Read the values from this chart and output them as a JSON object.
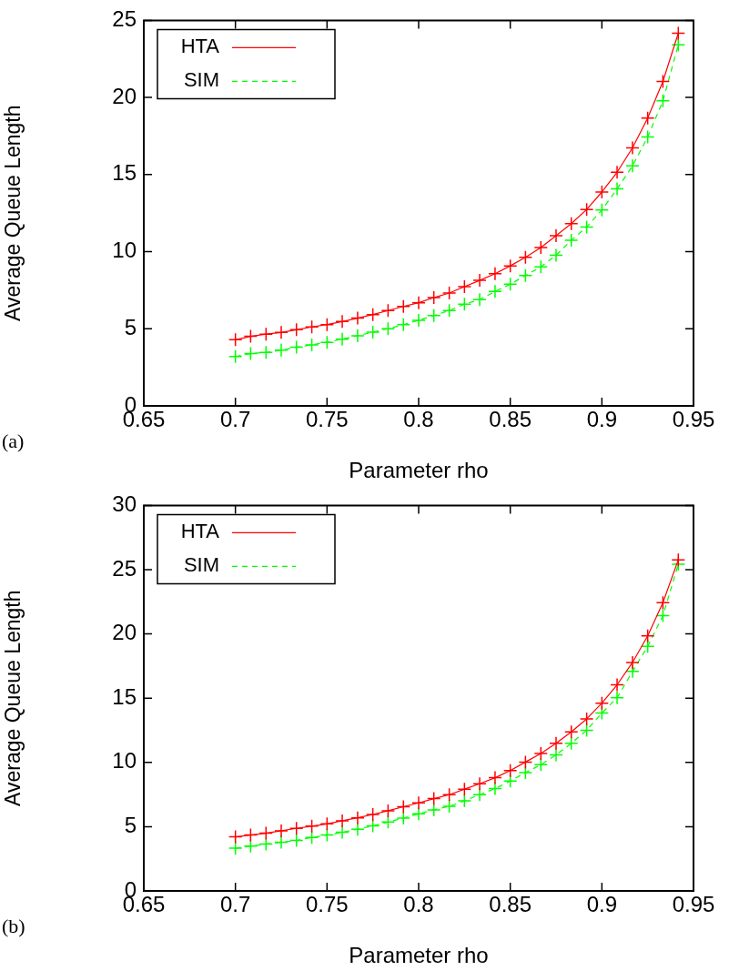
{
  "chart_data": [
    {
      "type": "line",
      "xlabel": "Parameter rho",
      "ylabel": "Average Queue Length",
      "annotations": [
        "(a)"
      ],
      "xlim": [
        0.65,
        0.95
      ],
      "xticks": [
        0.65,
        0.7,
        0.75,
        0.8,
        0.85,
        0.9,
        0.95
      ],
      "ylim": [
        0,
        25
      ],
      "yticks": [
        0,
        5,
        10,
        15,
        20,
        25
      ],
      "grid": false,
      "legend": "top left",
      "marker": "cross",
      "x": [
        0.7,
        0.7083,
        0.7167,
        0.725,
        0.7333,
        0.7417,
        0.75,
        0.7583,
        0.7667,
        0.775,
        0.7833,
        0.7917,
        0.8,
        0.8083,
        0.8167,
        0.825,
        0.8333,
        0.8417,
        0.85,
        0.8583,
        0.8667,
        0.875,
        0.8833,
        0.8917,
        0.9,
        0.9083,
        0.9167,
        0.925,
        0.9333,
        0.9417
      ],
      "series": [
        {
          "name": "HTA",
          "color": "#ff0000",
          "line_style": "solid",
          "values": [
            4.29,
            4.51,
            4.65,
            4.76,
            4.94,
            5.12,
            5.27,
            5.47,
            5.69,
            5.92,
            6.18,
            6.45,
            6.69,
            7.02,
            7.32,
            7.73,
            8.14,
            8.57,
            9.08,
            9.63,
            10.27,
            11.04,
            11.82,
            12.74,
            13.87,
            15.15,
            16.73,
            18.67,
            21.04,
            24.17
          ]
        },
        {
          "name": "SIM",
          "color": "#00ff00",
          "line_style": "dashed",
          "values": [
            3.2,
            3.39,
            3.47,
            3.61,
            3.8,
            3.96,
            4.12,
            4.33,
            4.55,
            4.78,
            5.0,
            5.27,
            5.55,
            5.86,
            6.18,
            6.6,
            6.89,
            7.42,
            7.89,
            8.45,
            9.02,
            9.77,
            10.74,
            11.6,
            12.7,
            14.07,
            15.56,
            17.44,
            19.78,
            23.42
          ]
        }
      ]
    },
    {
      "type": "line",
      "xlabel": "Parameter rho",
      "ylabel": "Average Queue Length",
      "annotations": [
        "(b)"
      ],
      "xlim": [
        0.65,
        0.95
      ],
      "xticks": [
        0.65,
        0.7,
        0.75,
        0.8,
        0.85,
        0.9,
        0.95
      ],
      "ylim": [
        0,
        30
      ],
      "yticks": [
        0,
        5,
        10,
        15,
        20,
        25,
        30
      ],
      "grid": false,
      "legend": "top left",
      "marker": "cross",
      "x": [
        0.7,
        0.7083,
        0.7167,
        0.725,
        0.7333,
        0.7417,
        0.75,
        0.7583,
        0.7667,
        0.775,
        0.7833,
        0.7917,
        0.8,
        0.8083,
        0.8167,
        0.825,
        0.8333,
        0.8417,
        0.85,
        0.8583,
        0.8667,
        0.875,
        0.8833,
        0.8917,
        0.9,
        0.9083,
        0.9167,
        0.925,
        0.9333,
        0.9417
      ],
      "series": [
        {
          "name": "HTA",
          "color": "#ff0000",
          "line_style": "solid",
          "values": [
            4.21,
            4.35,
            4.49,
            4.68,
            4.87,
            5.04,
            5.22,
            5.46,
            5.69,
            5.95,
            6.24,
            6.55,
            6.85,
            7.18,
            7.49,
            7.92,
            8.34,
            8.81,
            9.37,
            10.03,
            10.69,
            11.49,
            12.38,
            13.39,
            14.61,
            16.04,
            17.78,
            19.85,
            22.43,
            25.77
          ]
        },
        {
          "name": "SIM",
          "color": "#00ff00",
          "line_style": "dashed",
          "values": [
            3.32,
            3.48,
            3.65,
            3.79,
            3.93,
            4.16,
            4.35,
            4.56,
            4.8,
            5.06,
            5.36,
            5.67,
            6.0,
            6.31,
            6.58,
            7.02,
            7.49,
            7.96,
            8.55,
            9.21,
            9.82,
            10.59,
            11.49,
            12.5,
            13.84,
            15.03,
            17.08,
            19.03,
            21.42,
            25.42
          ]
        }
      ]
    }
  ]
}
